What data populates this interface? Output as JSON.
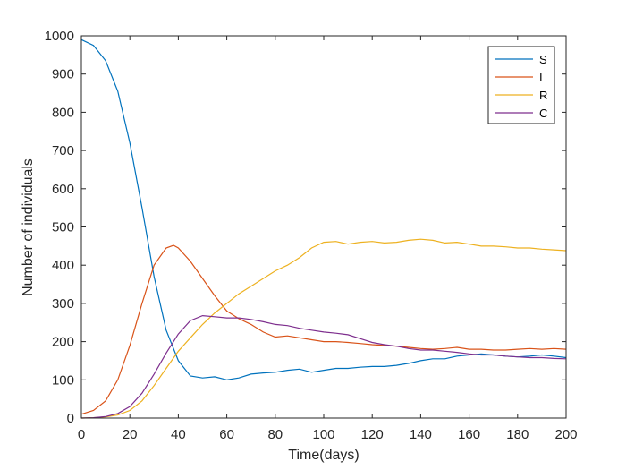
{
  "chart_data": {
    "type": "line",
    "title": "",
    "xlabel": "Time(days)",
    "ylabel": "Number of individuals",
    "xlim": [
      0,
      200
    ],
    "ylim": [
      0,
      1000
    ],
    "xticks": [
      0,
      20,
      40,
      60,
      80,
      100,
      120,
      140,
      160,
      180,
      200
    ],
    "yticks": [
      0,
      100,
      200,
      300,
      400,
      500,
      600,
      700,
      800,
      900,
      1000
    ],
    "grid": false,
    "legend_position": "top-right",
    "series": [
      {
        "name": "S",
        "color": "#0072BD",
        "x": [
          0,
          5,
          10,
          15,
          20,
          25,
          30,
          35,
          40,
          45,
          50,
          55,
          60,
          65,
          70,
          75,
          80,
          85,
          90,
          95,
          100,
          105,
          110,
          115,
          120,
          125,
          130,
          135,
          140,
          145,
          150,
          155,
          160,
          165,
          170,
          175,
          180,
          185,
          190,
          195,
          200
        ],
        "y": [
          990,
          975,
          935,
          855,
          720,
          550,
          370,
          230,
          150,
          110,
          105,
          108,
          100,
          105,
          115,
          118,
          120,
          125,
          128,
          120,
          125,
          130,
          130,
          133,
          135,
          135,
          138,
          143,
          150,
          155,
          155,
          162,
          165,
          168,
          165,
          162,
          160,
          162,
          165,
          162,
          158
        ]
      },
      {
        "name": "I",
        "color": "#D95319",
        "x": [
          0,
          5,
          10,
          15,
          20,
          25,
          30,
          35,
          38,
          40,
          45,
          50,
          55,
          60,
          65,
          70,
          75,
          80,
          85,
          90,
          95,
          100,
          105,
          110,
          115,
          120,
          125,
          130,
          135,
          140,
          145,
          150,
          155,
          160,
          165,
          170,
          175,
          180,
          185,
          190,
          195,
          200
        ],
        "y": [
          10,
          20,
          45,
          100,
          190,
          300,
          400,
          445,
          452,
          445,
          410,
          365,
          320,
          280,
          260,
          245,
          225,
          212,
          215,
          210,
          205,
          200,
          200,
          198,
          195,
          192,
          190,
          188,
          185,
          182,
          180,
          182,
          185,
          180,
          180,
          178,
          178,
          180,
          182,
          180,
          182,
          180
        ]
      },
      {
        "name": "R",
        "color": "#EDB120",
        "x": [
          0,
          5,
          10,
          15,
          20,
          25,
          30,
          35,
          40,
          45,
          50,
          55,
          60,
          65,
          70,
          75,
          80,
          85,
          90,
          95,
          100,
          105,
          110,
          115,
          120,
          125,
          130,
          135,
          140,
          145,
          150,
          155,
          160,
          165,
          170,
          175,
          180,
          185,
          190,
          195,
          200
        ],
        "y": [
          0,
          1,
          3,
          8,
          20,
          45,
          85,
          130,
          175,
          210,
          245,
          275,
          300,
          325,
          345,
          365,
          385,
          400,
          420,
          445,
          460,
          462,
          455,
          460,
          462,
          458,
          460,
          465,
          468,
          465,
          458,
          460,
          455,
          450,
          450,
          448,
          445,
          445,
          442,
          440,
          438
        ]
      },
      {
        "name": "C",
        "color": "#7E2F8E",
        "x": [
          0,
          5,
          10,
          15,
          20,
          25,
          30,
          35,
          40,
          45,
          50,
          55,
          60,
          65,
          70,
          75,
          80,
          85,
          90,
          95,
          100,
          105,
          110,
          115,
          120,
          125,
          130,
          135,
          140,
          145,
          150,
          155,
          160,
          165,
          170,
          175,
          180,
          185,
          190,
          195,
          200
        ],
        "y": [
          0,
          1,
          4,
          12,
          30,
          65,
          115,
          170,
          220,
          255,
          268,
          265,
          262,
          262,
          258,
          252,
          245,
          242,
          235,
          230,
          225,
          222,
          218,
          208,
          198,
          192,
          188,
          182,
          178,
          178,
          175,
          172,
          168,
          165,
          165,
          162,
          160,
          158,
          158,
          156,
          155
        ]
      }
    ]
  }
}
